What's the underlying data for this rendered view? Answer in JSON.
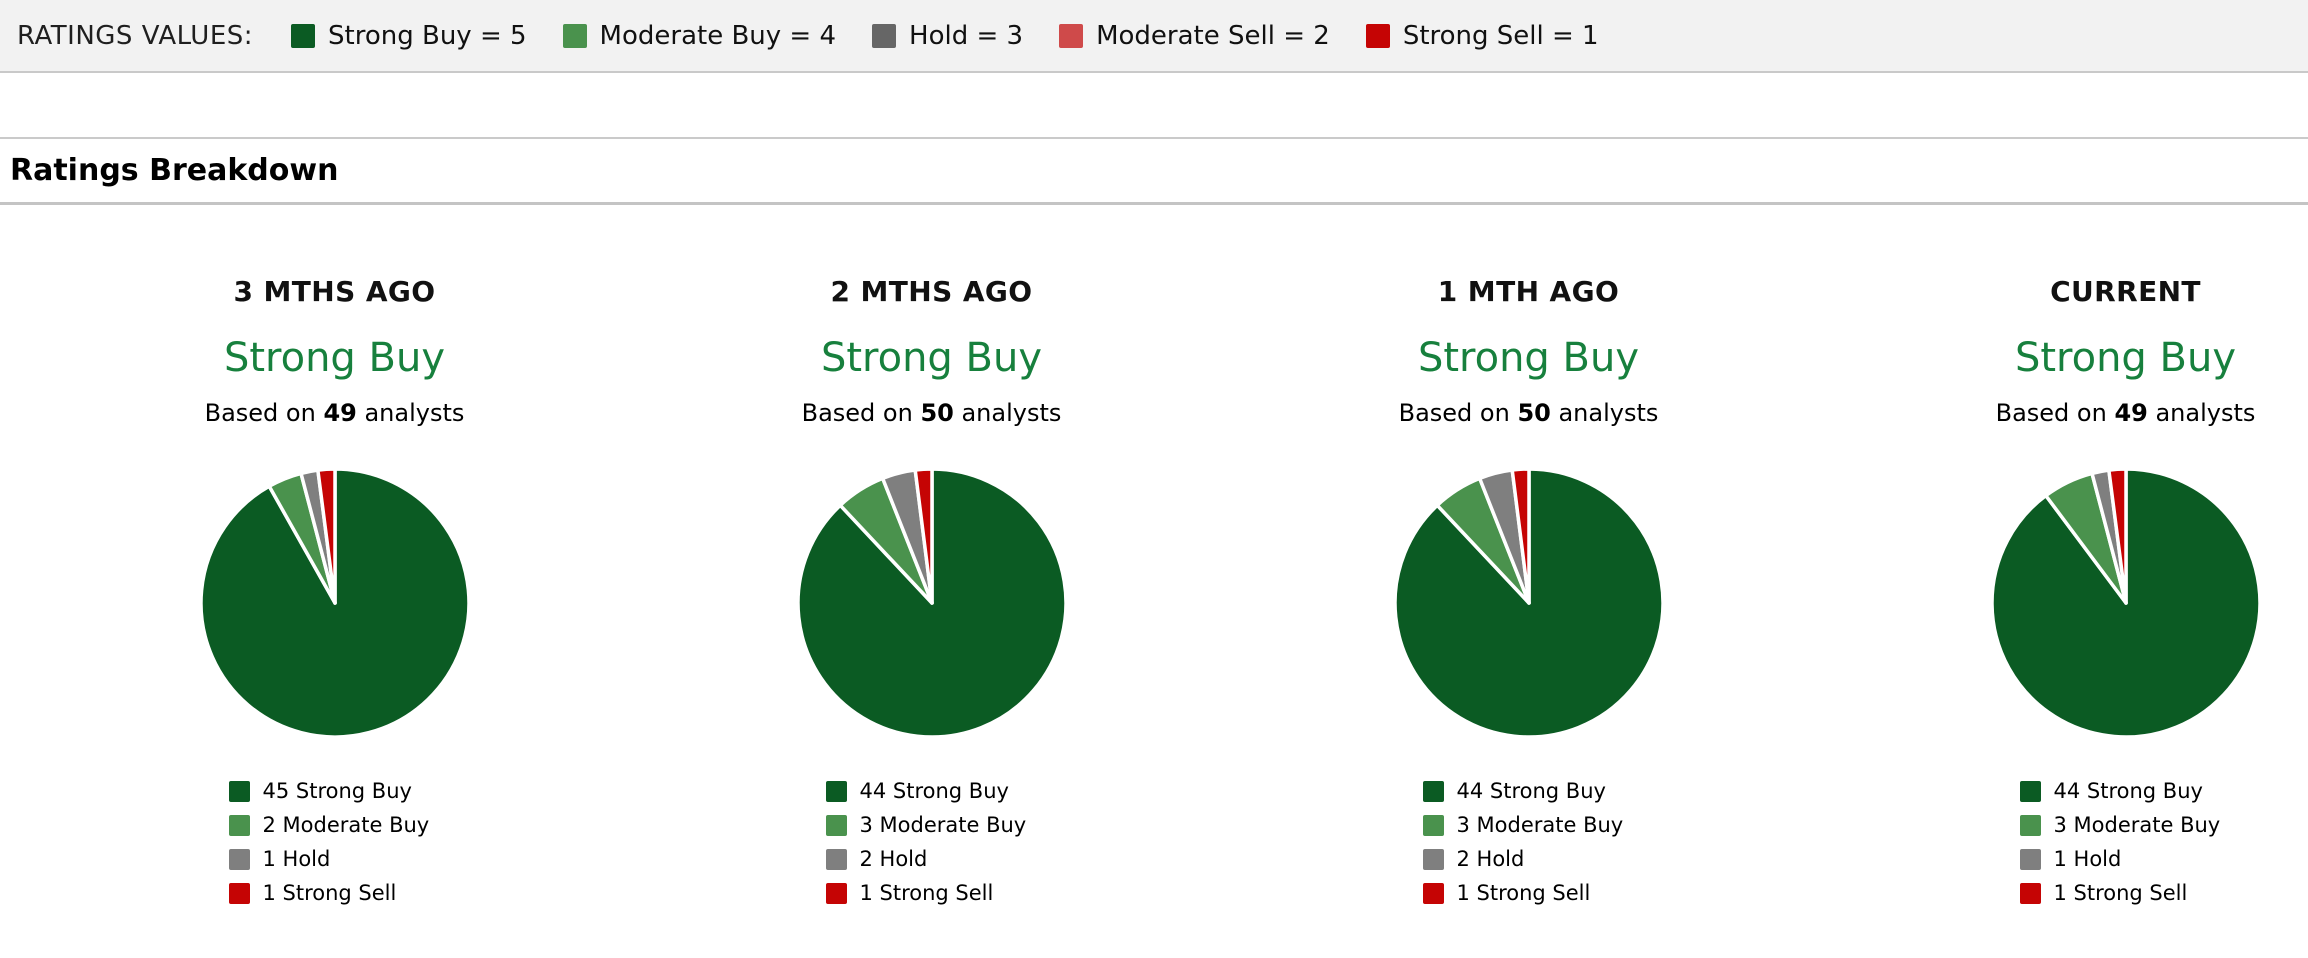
{
  "ratings_values_bar": {
    "label": "RATINGS VALUES:",
    "items": [
      {
        "label": "Strong Buy = 5",
        "color": "#0B5B23"
      },
      {
        "label": "Moderate Buy = 4",
        "color": "#4A924D"
      },
      {
        "label": "Hold = 3",
        "color": "#666666"
      },
      {
        "label": "Moderate Sell = 2",
        "color": "#CF4A4A"
      },
      {
        "label": "Strong Sell = 1",
        "color": "#C50404"
      }
    ]
  },
  "section": {
    "title": "Ratings Breakdown"
  },
  "colors": {
    "consensus_green": "#17803D",
    "strong_buy": "#0B5B23",
    "moderate_buy": "#4A924D",
    "hold": "#7F7F7F",
    "strong_sell": "#C50404"
  },
  "chart_data": [
    {
      "type": "pie",
      "period": "3 MTHS AGO",
      "consensus": "Strong Buy",
      "based_on": {
        "prefix": "Based on",
        "analysts": "49",
        "suffix": "analysts"
      },
      "total": 49,
      "slices": [
        {
          "label": "Strong Buy",
          "value": 45,
          "legend_label": "45 Strong Buy",
          "color": "#0B5B23"
        },
        {
          "label": "Moderate Buy",
          "value": 2,
          "legend_label": "2 Moderate Buy",
          "color": "#4A924D"
        },
        {
          "label": "Hold",
          "value": 1,
          "legend_label": "1 Hold",
          "color": "#7F7F7F"
        },
        {
          "label": "Strong Sell",
          "value": 1,
          "legend_label": "1 Strong Sell",
          "color": "#C50404"
        }
      ]
    },
    {
      "type": "pie",
      "period": "2 MTHS AGO",
      "consensus": "Strong Buy",
      "based_on": {
        "prefix": "Based on",
        "analysts": "50",
        "suffix": "analysts"
      },
      "total": 50,
      "slices": [
        {
          "label": "Strong Buy",
          "value": 44,
          "legend_label": "44 Strong Buy",
          "color": "#0B5B23"
        },
        {
          "label": "Moderate Buy",
          "value": 3,
          "legend_label": "3 Moderate Buy",
          "color": "#4A924D"
        },
        {
          "label": "Hold",
          "value": 2,
          "legend_label": "2 Hold",
          "color": "#7F7F7F"
        },
        {
          "label": "Strong Sell",
          "value": 1,
          "legend_label": "1 Strong Sell",
          "color": "#C50404"
        }
      ]
    },
    {
      "type": "pie",
      "period": "1 MTH AGO",
      "consensus": "Strong Buy",
      "based_on": {
        "prefix": "Based on",
        "analysts": "50",
        "suffix": "analysts"
      },
      "total": 50,
      "slices": [
        {
          "label": "Strong Buy",
          "value": 44,
          "legend_label": "44 Strong Buy",
          "color": "#0B5B23"
        },
        {
          "label": "Moderate Buy",
          "value": 3,
          "legend_label": "3 Moderate Buy",
          "color": "#4A924D"
        },
        {
          "label": "Hold",
          "value": 2,
          "legend_label": "2 Hold",
          "color": "#7F7F7F"
        },
        {
          "label": "Strong Sell",
          "value": 1,
          "legend_label": "1 Strong Sell",
          "color": "#C50404"
        }
      ]
    },
    {
      "type": "pie",
      "period": "CURRENT",
      "consensus": "Strong Buy",
      "based_on": {
        "prefix": "Based on",
        "analysts": "49",
        "suffix": "analysts"
      },
      "total": 49,
      "slices": [
        {
          "label": "Strong Buy",
          "value": 44,
          "legend_label": "44 Strong Buy",
          "color": "#0B5B23"
        },
        {
          "label": "Moderate Buy",
          "value": 3,
          "legend_label": "3 Moderate Buy",
          "color": "#4A924D"
        },
        {
          "label": "Hold",
          "value": 1,
          "legend_label": "1 Hold",
          "color": "#7F7F7F"
        },
        {
          "label": "Strong Sell",
          "value": 1,
          "legend_label": "1 Strong Sell",
          "color": "#C50404"
        }
      ]
    }
  ]
}
